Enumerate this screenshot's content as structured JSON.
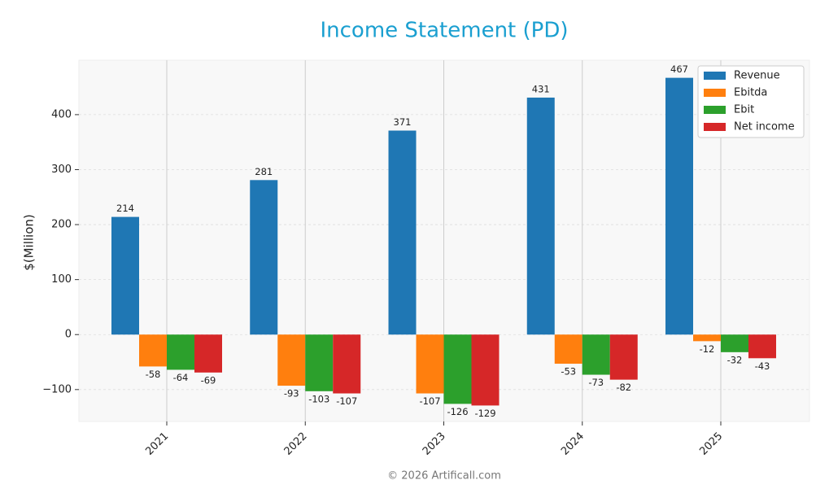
{
  "chart_data": {
    "type": "bar",
    "title": "Income Statement (PD)",
    "y_label": "$(Million)",
    "categories": [
      "2021",
      "2022",
      "2023",
      "2024",
      "2025"
    ],
    "series": [
      {
        "name": "Revenue",
        "color": "#1f77b4",
        "values": [
          214,
          281,
          371,
          431,
          467
        ]
      },
      {
        "name": "Ebitda",
        "color": "#ff7f0e",
        "values": [
          -58,
          -93,
          -107,
          -53,
          -12
        ]
      },
      {
        "name": "Ebit",
        "color": "#2ca02c",
        "values": [
          -64,
          -103,
          -126,
          -73,
          -32
        ]
      },
      {
        "name": "Net income",
        "color": "#d62728",
        "values": [
          -69,
          -107,
          -129,
          -82,
          -43
        ]
      }
    ],
    "ylim": [
      -158,
      499
    ],
    "yticks": [
      {
        "value": -100,
        "label": "−100"
      },
      0,
      100,
      200,
      300,
      400
    ],
    "grid": true,
    "legend": "upper right",
    "footer": "© 2026 Artificall.com"
  }
}
